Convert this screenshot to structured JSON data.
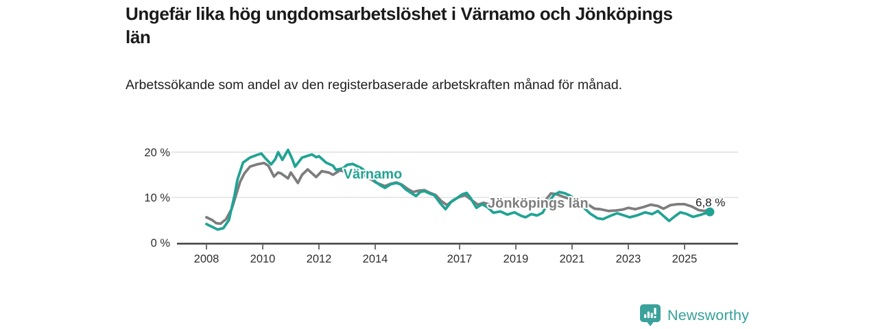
{
  "header": {
    "title": "Ungefär lika hög ungdomsarbetslöshet i Värnamo och Jönköpings län",
    "subtitle": "Arbetssökande som andel av den registerbaserade arbetskraften månad för månad."
  },
  "chart_data": {
    "type": "line",
    "title": "Ungefär lika hög ungdomsarbetslöshet i Värnamo och Jönköpings län",
    "subtitle": "Arbetssökande som andel av den registerbaserade arbetskraften månad för månad.",
    "unit": "%",
    "grid": "horizontal",
    "legend": "inline-labels",
    "x_axis": {
      "ticks": [
        2008,
        2010,
        2012,
        2014,
        2017,
        2019,
        2021,
        2023,
        2025
      ],
      "range": [
        2007.0,
        2026.9
      ]
    },
    "y_axis": {
      "ticks": [
        {
          "value": 0,
          "label": "0 %"
        },
        {
          "value": 10,
          "label": "10 %"
        },
        {
          "value": 20,
          "label": "20 %"
        }
      ],
      "range": [
        0,
        22
      ]
    },
    "style": {
      "grid_color": "#d9d9d9",
      "axis_color": "#3f3f3f",
      "tick_color": "#2e2e2e",
      "line_width": 3.8
    },
    "series": [
      {
        "name": "Jönköpings län",
        "color": "#7d7d7d",
        "label_pos": [
          2018.0,
          7.75
        ],
        "points": [
          [
            2008.0,
            5.6
          ],
          [
            2008.2,
            5.0
          ],
          [
            2008.35,
            4.3
          ],
          [
            2008.5,
            4.2
          ],
          [
            2008.7,
            5.2
          ],
          [
            2008.9,
            7.5
          ],
          [
            2009.05,
            10.5
          ],
          [
            2009.2,
            13.5
          ],
          [
            2009.35,
            15.3
          ],
          [
            2009.55,
            16.8
          ],
          [
            2009.8,
            17.3
          ],
          [
            2010.05,
            17.6
          ],
          [
            2010.2,
            17.0
          ],
          [
            2010.4,
            14.6
          ],
          [
            2010.55,
            15.5
          ],
          [
            2010.65,
            15.3
          ],
          [
            2010.9,
            14.2
          ],
          [
            2011.0,
            15.5
          ],
          [
            2011.25,
            13.2
          ],
          [
            2011.4,
            15.0
          ],
          [
            2011.6,
            16.2
          ],
          [
            2011.9,
            14.5
          ],
          [
            2012.1,
            15.8
          ],
          [
            2012.35,
            15.5
          ],
          [
            2012.5,
            15.0
          ],
          [
            2012.75,
            16.0
          ],
          [
            2013.0,
            15.5
          ],
          [
            2013.25,
            15.9
          ],
          [
            2013.55,
            15.1
          ],
          [
            2013.8,
            14.2
          ],
          [
            2014.05,
            13.2
          ],
          [
            2014.35,
            12.5
          ],
          [
            2014.55,
            13.0
          ],
          [
            2014.75,
            13.3
          ],
          [
            2014.95,
            12.8
          ],
          [
            2015.15,
            11.9
          ],
          [
            2015.35,
            11.2
          ],
          [
            2015.55,
            11.5
          ],
          [
            2015.75,
            11.6
          ],
          [
            2015.95,
            11.0
          ],
          [
            2016.15,
            10.5
          ],
          [
            2016.35,
            9.2
          ],
          [
            2016.55,
            8.3
          ],
          [
            2016.8,
            9.5
          ],
          [
            2017.0,
            10.1
          ],
          [
            2017.2,
            10.5
          ],
          [
            2017.45,
            9.3
          ],
          [
            2017.65,
            8.4
          ],
          [
            2017.85,
            8.8
          ],
          [
            2018.1,
            8.4
          ],
          [
            2018.35,
            8.1
          ],
          [
            2018.6,
            8.5
          ],
          [
            2018.9,
            8.2
          ],
          [
            2019.2,
            7.9
          ],
          [
            2019.5,
            8.1
          ],
          [
            2019.8,
            8.4
          ],
          [
            2020.05,
            9.3
          ],
          [
            2020.25,
            10.9
          ],
          [
            2020.45,
            10.7
          ],
          [
            2020.7,
            10.1
          ],
          [
            2021.0,
            9.5
          ],
          [
            2021.3,
            8.8
          ],
          [
            2021.55,
            8.5
          ],
          [
            2021.8,
            7.5
          ],
          [
            2022.0,
            7.4
          ],
          [
            2022.3,
            7.0
          ],
          [
            2022.55,
            7.1
          ],
          [
            2022.8,
            7.3
          ],
          [
            2023.0,
            7.7
          ],
          [
            2023.25,
            7.4
          ],
          [
            2023.55,
            7.9
          ],
          [
            2023.8,
            8.4
          ],
          [
            2024.05,
            8.1
          ],
          [
            2024.25,
            7.5
          ],
          [
            2024.5,
            8.3
          ],
          [
            2024.75,
            8.5
          ],
          [
            2025.0,
            8.5
          ],
          [
            2025.25,
            8.0
          ],
          [
            2025.5,
            7.2
          ],
          [
            2025.7,
            7.0
          ],
          [
            2025.9,
            7.3
          ]
        ]
      },
      {
        "name": "Värnamo",
        "color": "#21a394",
        "label_pos": [
          2012.87,
          14.2
        ],
        "end_dot": true,
        "end_label": "6,8 %",
        "end_label_pos": [
          2026.45,
          8.0
        ],
        "points": [
          [
            2008.0,
            4.1
          ],
          [
            2008.2,
            3.5
          ],
          [
            2008.4,
            2.9
          ],
          [
            2008.6,
            3.2
          ],
          [
            2008.8,
            5.0
          ],
          [
            2009.0,
            10.5
          ],
          [
            2009.1,
            13.9
          ],
          [
            2009.3,
            17.7
          ],
          [
            2009.55,
            18.8
          ],
          [
            2009.8,
            19.4
          ],
          [
            2009.95,
            19.7
          ],
          [
            2010.1,
            18.6
          ],
          [
            2010.3,
            17.3
          ],
          [
            2010.45,
            18.5
          ],
          [
            2010.55,
            20.0
          ],
          [
            2010.7,
            18.3
          ],
          [
            2010.9,
            20.5
          ],
          [
            2011.05,
            18.5
          ],
          [
            2011.15,
            16.8
          ],
          [
            2011.4,
            18.8
          ],
          [
            2011.6,
            19.2
          ],
          [
            2011.75,
            19.5
          ],
          [
            2011.9,
            18.9
          ],
          [
            2012.0,
            19.1
          ],
          [
            2012.25,
            17.7
          ],
          [
            2012.5,
            17.0
          ],
          [
            2012.6,
            16.1
          ],
          [
            2012.85,
            16.4
          ],
          [
            2013.0,
            17.2
          ],
          [
            2013.2,
            17.4
          ],
          [
            2013.5,
            16.5
          ],
          [
            2013.75,
            15.3
          ],
          [
            2014.0,
            13.5
          ],
          [
            2014.2,
            12.6
          ],
          [
            2014.35,
            12.1
          ],
          [
            2014.55,
            12.9
          ],
          [
            2014.75,
            13.2
          ],
          [
            2014.9,
            12.9
          ],
          [
            2015.1,
            11.7
          ],
          [
            2015.3,
            10.9
          ],
          [
            2015.45,
            10.3
          ],
          [
            2015.6,
            11.2
          ],
          [
            2015.75,
            11.4
          ],
          [
            2015.95,
            10.8
          ],
          [
            2016.1,
            10.5
          ],
          [
            2016.3,
            8.8
          ],
          [
            2016.5,
            7.4
          ],
          [
            2016.7,
            9.0
          ],
          [
            2016.85,
            9.6
          ],
          [
            2017.1,
            10.7
          ],
          [
            2017.25,
            11.0
          ],
          [
            2017.4,
            9.8
          ],
          [
            2017.5,
            8.7
          ],
          [
            2017.6,
            7.7
          ],
          [
            2017.8,
            8.5
          ],
          [
            2018.0,
            7.8
          ],
          [
            2018.2,
            6.6
          ],
          [
            2018.45,
            6.9
          ],
          [
            2018.7,
            6.2
          ],
          [
            2018.95,
            6.7
          ],
          [
            2019.2,
            5.9
          ],
          [
            2019.35,
            5.6
          ],
          [
            2019.55,
            6.3
          ],
          [
            2019.75,
            6.0
          ],
          [
            2019.95,
            6.6
          ],
          [
            2020.15,
            8.8
          ],
          [
            2020.35,
            10.5
          ],
          [
            2020.55,
            11.2
          ],
          [
            2020.75,
            10.9
          ],
          [
            2020.95,
            10.3
          ],
          [
            2021.2,
            9.0
          ],
          [
            2021.45,
            7.5
          ],
          [
            2021.65,
            6.4
          ],
          [
            2021.9,
            5.4
          ],
          [
            2022.1,
            5.2
          ],
          [
            2022.35,
            5.9
          ],
          [
            2022.6,
            6.5
          ],
          [
            2022.8,
            6.1
          ],
          [
            2023.05,
            5.6
          ],
          [
            2023.3,
            6.0
          ],
          [
            2023.6,
            6.7
          ],
          [
            2023.85,
            6.3
          ],
          [
            2024.05,
            7.0
          ],
          [
            2024.25,
            5.9
          ],
          [
            2024.45,
            4.8
          ],
          [
            2024.65,
            5.8
          ],
          [
            2024.85,
            6.7
          ],
          [
            2025.05,
            6.4
          ],
          [
            2025.3,
            5.7
          ],
          [
            2025.55,
            6.1
          ],
          [
            2025.75,
            6.5
          ],
          [
            2025.9,
            6.8
          ]
        ]
      }
    ]
  },
  "footer": {
    "brand": "Newsworthy",
    "logo_color": "#3aa19b"
  }
}
